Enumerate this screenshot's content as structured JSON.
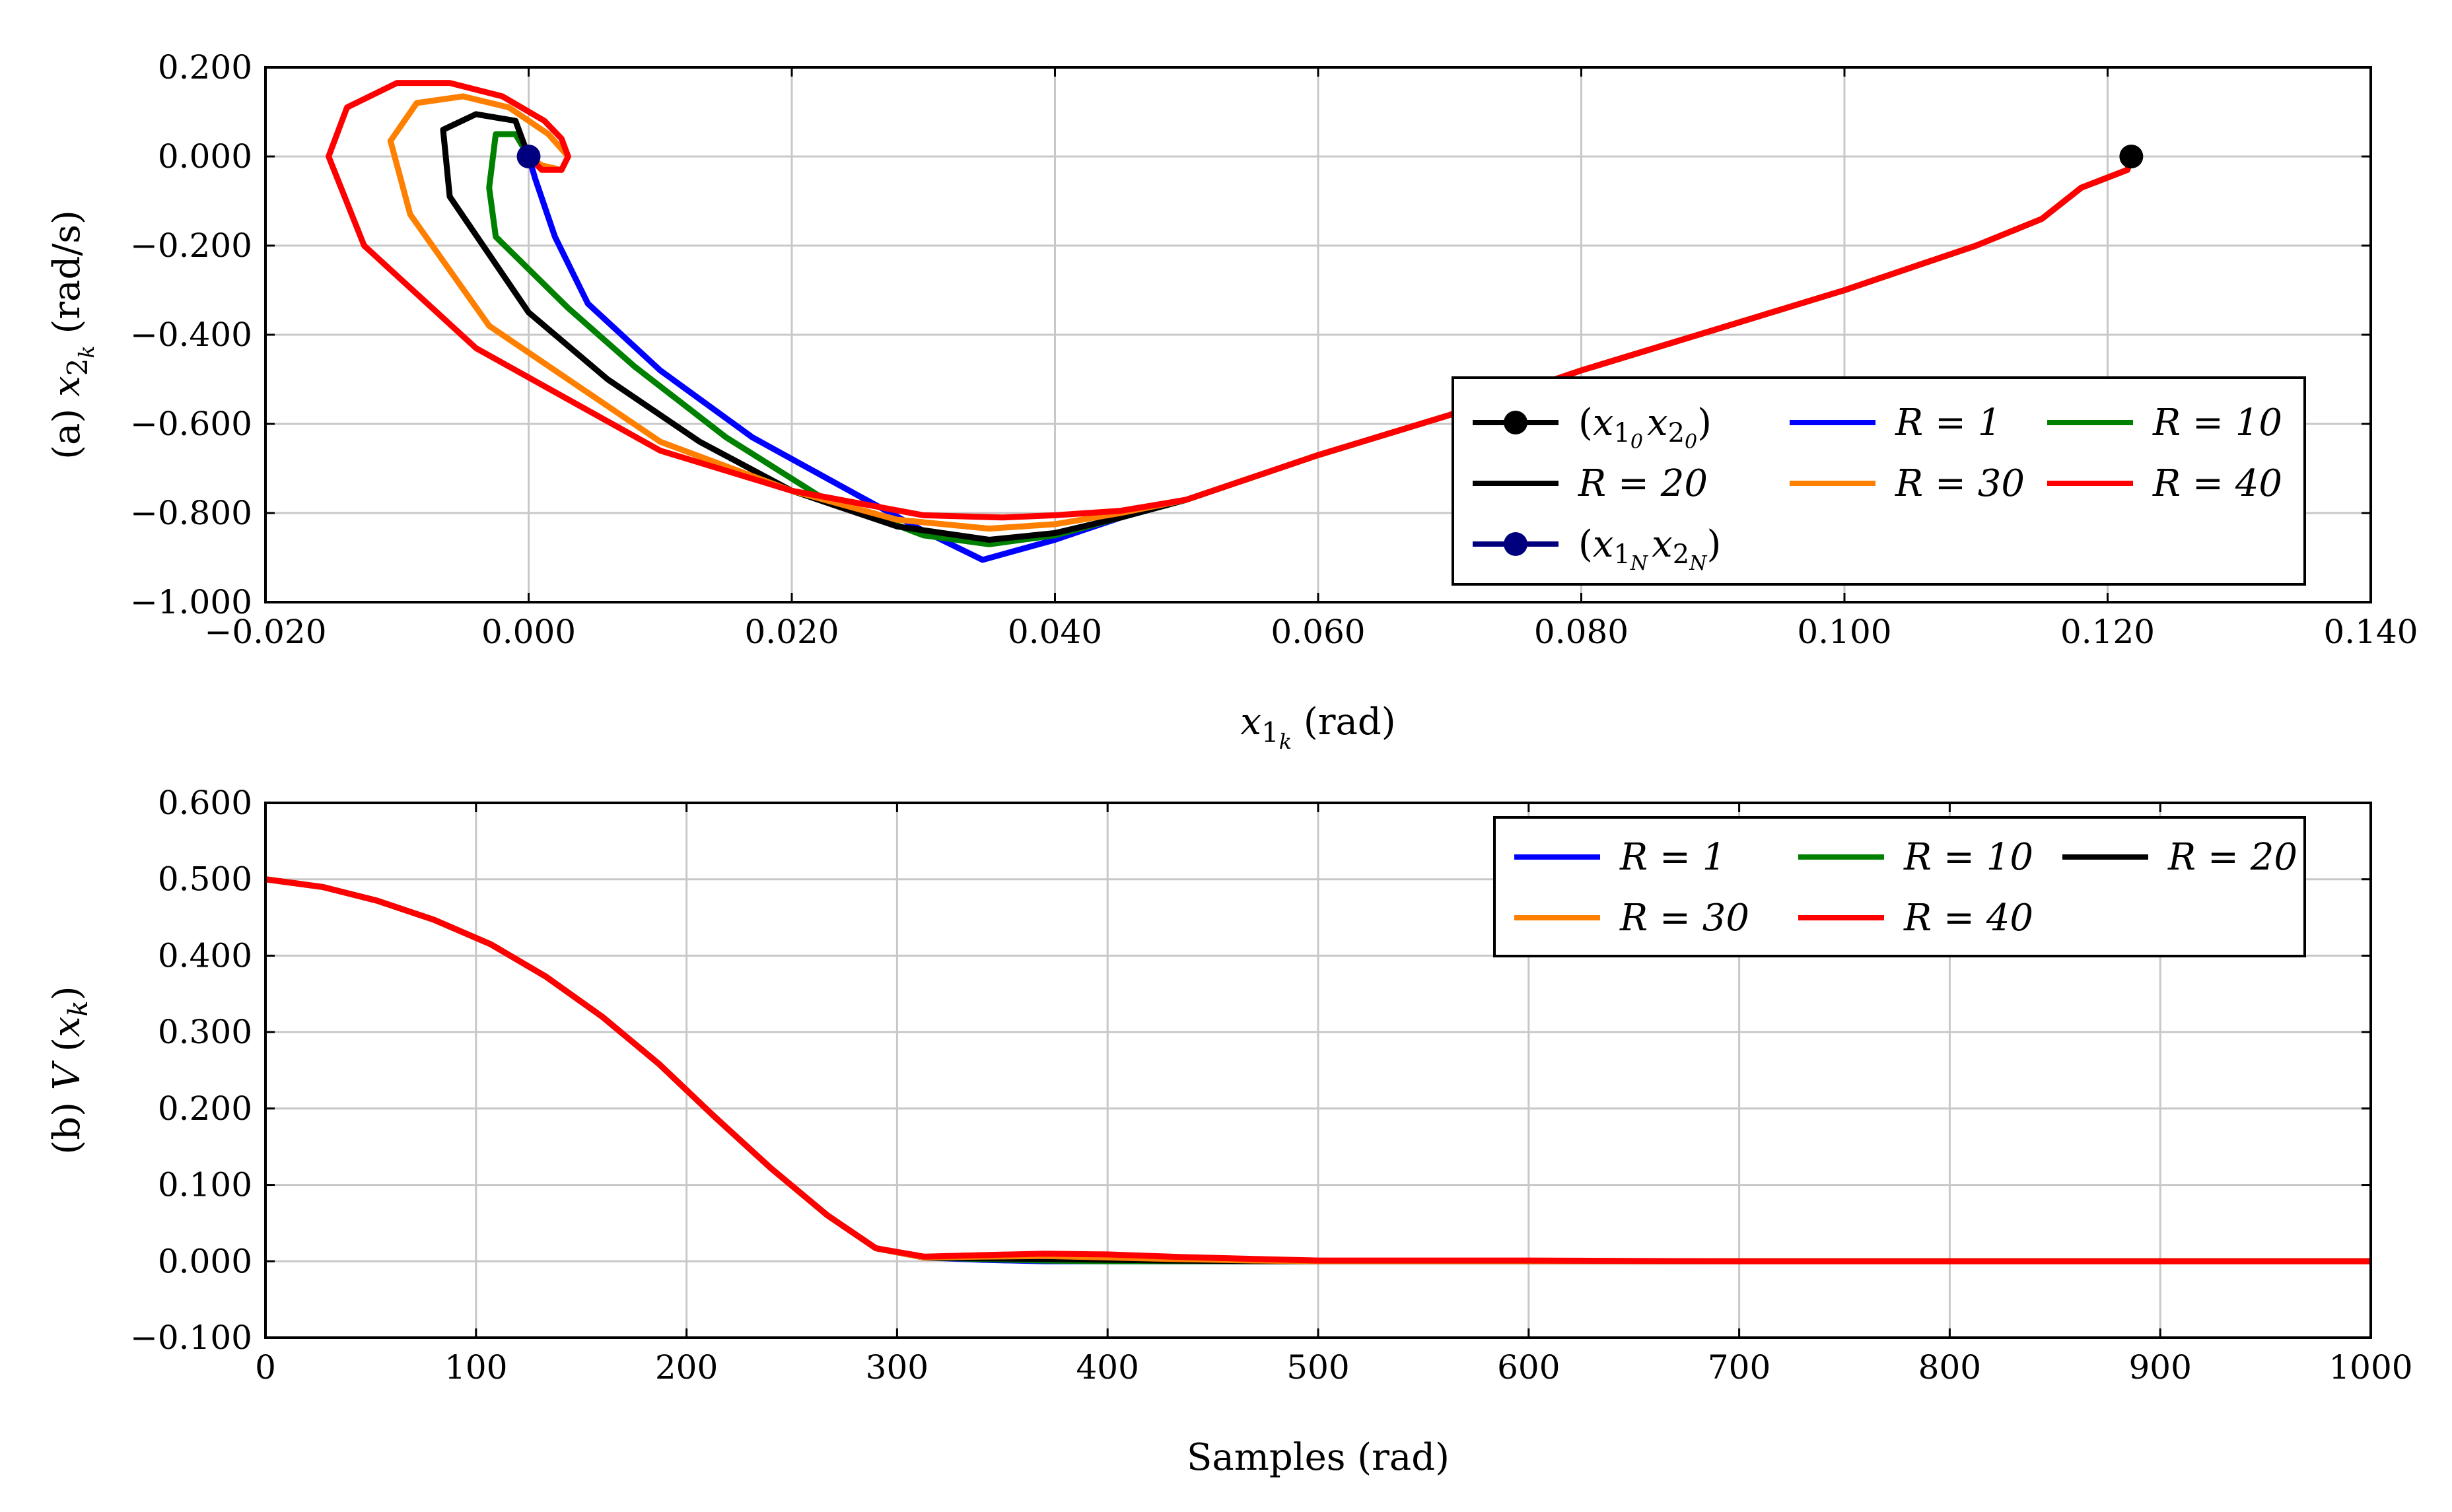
{
  "chart_data": [
    {
      "panel": "a",
      "type": "line",
      "title": "",
      "xlabel": "x1k (rad)",
      "ylabel": "(a) x2k (rad/s)",
      "xlim": [
        -0.02,
        0.14
      ],
      "ylim": [
        -1.0,
        0.2
      ],
      "xticks": [
        -0.02,
        0.0,
        0.02,
        0.04,
        0.06,
        0.08,
        0.1,
        0.12,
        0.14
      ],
      "xtick_labels": [
        "−0.020",
        "0.000",
        "0.020",
        "0.040",
        "0.060",
        "0.080",
        "0.100",
        "0.120",
        "0.140"
      ],
      "yticks": [
        -1.0,
        -0.8,
        -0.6,
        -0.4,
        -0.2,
        0.0,
        0.2
      ],
      "ytick_labels": [
        "−1.000",
        "−0.800",
        "−0.600",
        "−0.400",
        "−0.200",
        "0.000",
        "0.200"
      ],
      "grid": true,
      "legend_position": "lower-right",
      "legend_rows": [
        [
          "start",
          "R1",
          "R10"
        ],
        [
          "R20",
          "R30",
          "R40"
        ],
        [
          "end"
        ]
      ],
      "markers": [
        {
          "id": "start",
          "name": "(x10 x20)",
          "x": 0.1218,
          "y": 0.0,
          "color": "#000000"
        },
        {
          "id": "end",
          "name": "(x1N x2N)",
          "x": 0.0,
          "y": 0.0,
          "color": "#00007f"
        }
      ],
      "series": [
        {
          "id": "R1",
          "name": "R = 1",
          "color": "#0000ff",
          "x": [
            0.1218,
            0.1215,
            0.118,
            0.115,
            0.11,
            0.1,
            0.09,
            0.08,
            0.07,
            0.06,
            0.05,
            0.045,
            0.04,
            0.0345,
            0.03,
            0.025,
            0.017,
            0.01,
            0.0045,
            0.002,
            0.0005,
            0.0
          ],
          "y": [
            0.0,
            -0.03,
            -0.07,
            -0.14,
            -0.2,
            -0.3,
            -0.39,
            -0.48,
            -0.58,
            -0.67,
            -0.77,
            -0.81,
            -0.86,
            -0.905,
            -0.84,
            -0.76,
            -0.63,
            -0.48,
            -0.33,
            -0.18,
            -0.05,
            0.0
          ]
        },
        {
          "id": "R10",
          "name": "R = 10",
          "color": "#008000",
          "x": [
            0.1218,
            0.1215,
            0.118,
            0.115,
            0.11,
            0.1,
            0.09,
            0.08,
            0.07,
            0.06,
            0.05,
            0.045,
            0.04,
            0.035,
            0.03,
            0.022,
            0.015,
            0.008,
            0.003,
            -0.0025,
            -0.003,
            -0.0025,
            -0.001,
            0.0
          ],
          "y": [
            0.0,
            -0.03,
            -0.07,
            -0.14,
            -0.2,
            -0.3,
            -0.39,
            -0.48,
            -0.58,
            -0.67,
            -0.77,
            -0.81,
            -0.85,
            -0.87,
            -0.85,
            -0.76,
            -0.63,
            -0.47,
            -0.34,
            -0.18,
            -0.07,
            0.05,
            0.05,
            0.0
          ]
        },
        {
          "id": "R20",
          "name": "R = 20",
          "color": "#000000",
          "x": [
            0.1218,
            0.1215,
            0.118,
            0.115,
            0.11,
            0.1,
            0.09,
            0.08,
            0.07,
            0.06,
            0.05,
            0.045,
            0.04,
            0.035,
            0.028,
            0.02,
            0.013,
            0.006,
            0.0,
            -0.006,
            -0.0065,
            -0.004,
            -0.001,
            0.0
          ],
          "y": [
            0.0,
            -0.03,
            -0.07,
            -0.14,
            -0.2,
            -0.3,
            -0.39,
            -0.48,
            -0.58,
            -0.67,
            -0.77,
            -0.81,
            -0.845,
            -0.86,
            -0.83,
            -0.75,
            -0.64,
            -0.5,
            -0.35,
            -0.09,
            0.06,
            0.095,
            0.08,
            0.0
          ]
        },
        {
          "id": "R30",
          "name": "R = 30",
          "color": "#ff8000",
          "x": [
            0.1218,
            0.1215,
            0.118,
            0.115,
            0.11,
            0.1,
            0.09,
            0.08,
            0.07,
            0.06,
            0.05,
            0.045,
            0.04,
            0.035,
            0.028,
            0.02,
            0.01,
            -0.003,
            -0.009,
            -0.0105,
            -0.0085,
            -0.005,
            -0.0015,
            0.0015,
            0.003,
            0.0025,
            0.001,
            0.0
          ],
          "y": [
            0.0,
            -0.03,
            -0.07,
            -0.14,
            -0.2,
            -0.3,
            -0.39,
            -0.48,
            -0.58,
            -0.67,
            -0.77,
            -0.8,
            -0.825,
            -0.835,
            -0.815,
            -0.75,
            -0.64,
            -0.38,
            -0.13,
            0.035,
            0.12,
            0.135,
            0.11,
            0.05,
            0.0,
            -0.03,
            -0.02,
            0.0
          ]
        },
        {
          "id": "R40",
          "name": "R = 40",
          "color": "#ff0000",
          "x": [
            0.1218,
            0.1215,
            0.118,
            0.115,
            0.11,
            0.1,
            0.09,
            0.08,
            0.07,
            0.06,
            0.05,
            0.045,
            0.04,
            0.036,
            0.03,
            0.02,
            0.01,
            -0.004,
            -0.0125,
            -0.0152,
            -0.0138,
            -0.01,
            -0.006,
            -0.002,
            0.0012,
            0.0025,
            0.003,
            0.0025,
            0.001,
            0.0
          ],
          "y": [
            0.0,
            -0.03,
            -0.07,
            -0.14,
            -0.2,
            -0.3,
            -0.39,
            -0.48,
            -0.58,
            -0.67,
            -0.77,
            -0.795,
            -0.805,
            -0.81,
            -0.805,
            -0.75,
            -0.66,
            -0.43,
            -0.2,
            0.0,
            0.11,
            0.165,
            0.165,
            0.135,
            0.08,
            0.04,
            0.0,
            -0.03,
            -0.03,
            0.0
          ]
        }
      ]
    },
    {
      "panel": "b",
      "type": "line",
      "title": "",
      "xlabel": "Samples (rad)",
      "ylabel": "(b) V (xk)",
      "xlim": [
        0,
        1000
      ],
      "ylim": [
        -0.1,
        0.6
      ],
      "xticks": [
        0,
        100,
        200,
        300,
        400,
        500,
        600,
        700,
        800,
        900,
        1000
      ],
      "xtick_labels": [
        "0",
        "100",
        "200",
        "300",
        "400",
        "500",
        "600",
        "700",
        "800",
        "900",
        "1000"
      ],
      "yticks": [
        -0.1,
        0.0,
        0.1,
        0.2,
        0.3,
        0.4,
        0.5,
        0.6
      ],
      "ytick_labels": [
        "−0.100",
        "0.000",
        "0.100",
        "0.200",
        "0.300",
        "0.400",
        "0.500",
        "0.600"
      ],
      "grid": true,
      "legend_position": "top-right",
      "legend_rows": [
        [
          "R1",
          "R10",
          "R20"
        ],
        [
          "R30",
          "R40"
        ]
      ],
      "series": [
        {
          "id": "R1",
          "name": "R = 1",
          "color": "#0000ff",
          "x": [
            0,
            27,
            53,
            80,
            107,
            133,
            160,
            187,
            213,
            240,
            267,
            290,
            313,
            340,
            370,
            400,
            430,
            470,
            500,
            600,
            700,
            800,
            900,
            1000
          ],
          "y": [
            0.5,
            0.49,
            0.472,
            0.447,
            0.415,
            0.373,
            0.32,
            0.258,
            0.19,
            0.122,
            0.06,
            0.017,
            0.005,
            0.002,
            0.0,
            0.0,
            0.0,
            0.0,
            0.0,
            0.0,
            0.0,
            0.0,
            0.0,
            0.0
          ]
        },
        {
          "id": "R10",
          "name": "R = 10",
          "color": "#008000",
          "x": [
            0,
            27,
            53,
            80,
            107,
            133,
            160,
            187,
            213,
            240,
            267,
            290,
            313,
            340,
            370,
            400,
            430,
            470,
            500,
            600,
            700,
            800,
            900,
            1000
          ],
          "y": [
            0.5,
            0.49,
            0.472,
            0.447,
            0.415,
            0.373,
            0.32,
            0.258,
            0.19,
            0.122,
            0.06,
            0.017,
            0.005,
            0.003,
            0.001,
            0.0,
            0.0,
            0.0,
            0.0,
            0.0,
            0.0,
            0.0,
            0.0,
            0.0
          ]
        },
        {
          "id": "R20",
          "name": "R = 20",
          "color": "#000000",
          "x": [
            0,
            27,
            53,
            80,
            107,
            133,
            160,
            187,
            213,
            240,
            267,
            290,
            313,
            340,
            370,
            400,
            430,
            470,
            500,
            600,
            700,
            800,
            900,
            1000
          ],
          "y": [
            0.5,
            0.49,
            0.472,
            0.447,
            0.415,
            0.373,
            0.32,
            0.258,
            0.19,
            0.122,
            0.06,
            0.017,
            0.005,
            0.004,
            0.003,
            0.002,
            0.001,
            0.0,
            0.0,
            0.0,
            0.0,
            0.0,
            0.0,
            0.0
          ]
        },
        {
          "id": "R30",
          "name": "R = 30",
          "color": "#ff8000",
          "x": [
            0,
            27,
            53,
            80,
            107,
            133,
            160,
            187,
            213,
            240,
            267,
            290,
            313,
            340,
            370,
            400,
            430,
            470,
            500,
            600,
            700,
            800,
            900,
            1000
          ],
          "y": [
            0.5,
            0.49,
            0.472,
            0.447,
            0.415,
            0.373,
            0.32,
            0.258,
            0.19,
            0.122,
            0.06,
            0.017,
            0.005,
            0.006,
            0.007,
            0.005,
            0.003,
            0.001,
            0.0,
            0.0,
            0.0,
            0.0,
            0.0,
            0.0
          ]
        },
        {
          "id": "R40",
          "name": "R = 40",
          "color": "#ff0000",
          "x": [
            0,
            27,
            53,
            80,
            107,
            133,
            160,
            187,
            213,
            240,
            267,
            290,
            313,
            340,
            370,
            400,
            430,
            470,
            500,
            550,
            600,
            650,
            700,
            800,
            900,
            1000
          ],
          "y": [
            0.5,
            0.49,
            0.472,
            0.447,
            0.415,
            0.373,
            0.32,
            0.258,
            0.19,
            0.122,
            0.06,
            0.017,
            0.006,
            0.008,
            0.01,
            0.009,
            0.006,
            0.003,
            0.001,
            0.001,
            0.001,
            0.0005,
            0.0,
            0.0,
            0.0,
            0.0
          ]
        }
      ]
    }
  ]
}
